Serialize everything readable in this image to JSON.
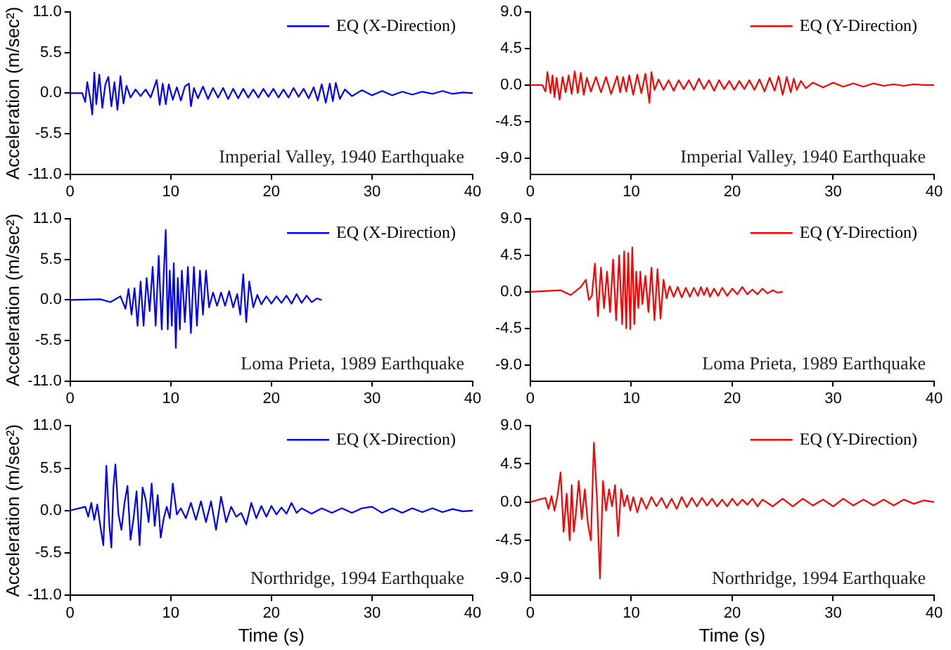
{
  "chart_data": [
    {
      "type": "line",
      "ylabel": "Acceleration (m/sec²)",
      "xlim": [
        0,
        40
      ],
      "xticks": [
        0,
        10,
        20,
        30,
        40
      ],
      "ylim": [
        -11,
        11
      ],
      "yticks": [
        {
          "value": -11,
          "label": "-11.0"
        },
        {
          "value": -5.5,
          "label": "-5.5"
        },
        {
          "value": 0,
          "label": "0.0"
        },
        {
          "value": 5.5,
          "label": "5.5"
        },
        {
          "value": 11,
          "label": "11.0"
        }
      ],
      "legend": "top right",
      "marker": "none",
      "annotations": [
        "Imperial Valley, 1940 Earthquake"
      ],
      "x": [
        0,
        1.2,
        1.5,
        1.7,
        2.0,
        2.2,
        2.4,
        2.6,
        2.9,
        3.2,
        3.5,
        3.8,
        4.1,
        4.4,
        4.7,
        5.0,
        5.3,
        5.6,
        6.0,
        6.5,
        7.0,
        7.5,
        8.0,
        8.6,
        8.9,
        9.2,
        9.5,
        9.8,
        10.2,
        10.6,
        11.0,
        11.4,
        11.8,
        12.0,
        12.3,
        12.7,
        13.2,
        13.7,
        14.2,
        14.7,
        15.2,
        15.7,
        16.2,
        16.7,
        17.2,
        17.7,
        18.2,
        18.7,
        19.2,
        19.7,
        20.2,
        20.7,
        21.2,
        21.7,
        22.2,
        22.7,
        23.2,
        23.7,
        24.2,
        24.6,
        25.0,
        25.4,
        25.8,
        26.1,
        26.4,
        26.8,
        27.3,
        28,
        29,
        30,
        31,
        32,
        33,
        34,
        35,
        36,
        37,
        38,
        39,
        40
      ],
      "series": [
        {
          "name": "EQ (X-Direction)",
          "color": "#0000ff",
          "values": [
            0,
            0,
            -1.2,
            1.5,
            -0.8,
            -2.9,
            2.8,
            -1.5,
            2.5,
            -2.0,
            1.2,
            2.2,
            -1.8,
            1.5,
            -2.3,
            2.3,
            -1.4,
            1.0,
            -0.6,
            0.5,
            -0.4,
            0.5,
            -0.6,
            1.8,
            -1.6,
            1.3,
            -1.5,
            1.2,
            -0.9,
            0.8,
            -1.0,
            0.9,
            1.3,
            -1.8,
            0.7,
            -0.7,
            0.9,
            -0.8,
            0.7,
            -0.6,
            0.7,
            -0.8,
            0.6,
            -0.7,
            0.6,
            -0.6,
            0.5,
            -0.6,
            0.6,
            -0.5,
            0.6,
            -0.6,
            0.5,
            -0.6,
            0.7,
            -0.5,
            0.6,
            -0.7,
            0.8,
            -1.0,
            1.2,
            -1.3,
            1.3,
            -1.1,
            1.4,
            -0.8,
            0.5,
            -0.4,
            0.4,
            -0.3,
            0.3,
            -0.3,
            0.2,
            -0.2,
            0.2,
            -0.1,
            0.3,
            -0.1,
            0.1,
            0
          ]
        }
      ]
    },
    {
      "type": "line",
      "xlim": [
        0,
        40
      ],
      "xticks": [
        0,
        10,
        20,
        30,
        40
      ],
      "ylim": [
        -11,
        9
      ],
      "yticks": [
        {
          "value": -9,
          "label": "-9.0"
        },
        {
          "value": -4.5,
          "label": "-4.5"
        },
        {
          "value": 0,
          "label": "0.0"
        },
        {
          "value": 4.5,
          "label": "4.5"
        },
        {
          "value": 9,
          "label": "9.0"
        }
      ],
      "legend": "top right",
      "marker": "none",
      "annotations": [
        "Imperial Valley, 1940 Earthquake"
      ],
      "x": [
        0,
        1.2,
        1.5,
        1.7,
        2.0,
        2.2,
        2.4,
        2.6,
        2.9,
        3.2,
        3.5,
        3.8,
        4.1,
        4.4,
        4.7,
        5.0,
        5.3,
        5.6,
        6.0,
        6.5,
        7.0,
        7.5,
        8.0,
        8.6,
        8.9,
        9.2,
        9.5,
        9.8,
        10.2,
        10.6,
        11.0,
        11.4,
        11.8,
        12.0,
        12.3,
        12.7,
        13.2,
        13.7,
        14.2,
        14.7,
        15.2,
        15.7,
        16.2,
        16.7,
        17.2,
        17.7,
        18.2,
        18.7,
        19.2,
        19.7,
        20.2,
        20.7,
        21.2,
        21.7,
        22.2,
        22.7,
        23.2,
        23.7,
        24.2,
        24.6,
        25.0,
        25.4,
        25.8,
        26.1,
        26.4,
        26.8,
        27.3,
        28,
        29,
        30,
        31,
        32,
        33,
        34,
        35,
        36,
        37,
        38,
        39,
        40
      ],
      "series": [
        {
          "name": "EQ (Y-Direction)",
          "color": "#ff0000",
          "values": [
            0,
            0,
            -0.8,
            1.6,
            -1.0,
            1.2,
            -1.5,
            0.9,
            -1.8,
            1.0,
            -0.9,
            1.2,
            -1.1,
            1.7,
            -1.0,
            1.5,
            -1.2,
            0.9,
            -0.8,
            1.0,
            -0.9,
            1.0,
            -1.1,
            1.1,
            -0.9,
            1.0,
            -0.8,
            1.2,
            -1.2,
            1.3,
            -1.0,
            1.4,
            -2.2,
            1.6,
            -0.6,
            0.7,
            -0.6,
            0.6,
            -0.7,
            0.6,
            -0.5,
            0.6,
            -0.6,
            0.8,
            -0.5,
            0.6,
            -0.7,
            0.6,
            -0.5,
            0.5,
            -0.6,
            0.5,
            -0.5,
            0.6,
            -0.6,
            0.7,
            -0.8,
            0.9,
            -0.7,
            1.1,
            -1.2,
            1.0,
            -0.9,
            0.8,
            -0.6,
            0.5,
            -0.4,
            0.3,
            -0.3,
            0.3,
            -0.2,
            0.2,
            -0.2,
            0.2,
            -0.1,
            0.1,
            -0.1,
            0.1,
            0,
            0
          ]
        }
      ]
    },
    {
      "type": "line",
      "ylabel": "Acceleration (m/sec²)",
      "xlim": [
        0,
        40
      ],
      "xticks": [
        0,
        10,
        20,
        30,
        40
      ],
      "ylim": [
        -11,
        11
      ],
      "yticks": [
        {
          "value": -11,
          "label": "-11.0"
        },
        {
          "value": -5.5,
          "label": "-5.5"
        },
        {
          "value": 0,
          "label": "0.0"
        },
        {
          "value": 5.5,
          "label": "5.5"
        },
        {
          "value": 11,
          "label": "11.0"
        }
      ],
      "legend": "top right",
      "marker": "none",
      "annotations": [
        "Loma Prieta, 1989 Earthquake"
      ],
      "x": [
        0,
        3,
        4,
        5,
        5.5,
        5.8,
        6.1,
        6.4,
        6.7,
        7.0,
        7.3,
        7.6,
        7.9,
        8.2,
        8.5,
        8.8,
        9.1,
        9.3,
        9.5,
        9.7,
        9.9,
        10.1,
        10.3,
        10.5,
        10.7,
        10.9,
        11.1,
        11.4,
        11.7,
        12.0,
        12.3,
        12.6,
        12.9,
        13.2,
        13.5,
        13.8,
        14.2,
        14.6,
        15.0,
        15.4,
        15.8,
        16.2,
        16.6,
        16.9,
        17.2,
        17.5,
        17.8,
        18.2,
        18.6,
        19.0,
        19.5,
        20,
        20.5,
        21,
        21.5,
        22,
        22.5,
        23,
        23.5,
        24,
        24.5,
        25
      ],
      "series": [
        {
          "name": "EQ (X-Direction)",
          "color": "#0000ff",
          "values": [
            0,
            0.1,
            -0.3,
            0.5,
            -1.2,
            1.5,
            -2.0,
            1.6,
            -3.5,
            2.5,
            -3.5,
            3.0,
            -1.5,
            4.5,
            -3.5,
            6.0,
            -4.0,
            3.5,
            9.5,
            -4.0,
            4.0,
            -3.5,
            5.0,
            -6.5,
            3.0,
            -4.0,
            4.0,
            -3.0,
            4.5,
            -4.5,
            4.5,
            -3.5,
            4.0,
            -2.0,
            4.0,
            -1.0,
            1.0,
            -0.8,
            1.0,
            -0.8,
            1.2,
            -1.0,
            0.8,
            -2.0,
            3.5,
            -3.0,
            2.5,
            -1.0,
            0.7,
            -0.6,
            0.5,
            -0.5,
            0.5,
            -0.4,
            0.6,
            -0.5,
            0.8,
            -0.4,
            0.6,
            -0.3,
            0.2,
            0
          ]
        }
      ]
    },
    {
      "type": "line",
      "xlim": [
        0,
        40
      ],
      "xticks": [
        0,
        10,
        20,
        30,
        40
      ],
      "ylim": [
        -11,
        9
      ],
      "yticks": [
        {
          "value": -9,
          "label": "-9.0"
        },
        {
          "value": -4.5,
          "label": "-4.5"
        },
        {
          "value": 0,
          "label": "0.0"
        },
        {
          "value": 4.5,
          "label": "4.5"
        },
        {
          "value": 9,
          "label": "9.0"
        }
      ],
      "legend": "top right",
      "marker": "none",
      "annotations": [
        "Loma Prieta, 1989 Earthquake"
      ],
      "x": [
        0,
        3,
        4,
        5,
        5.5,
        5.8,
        6.1,
        6.4,
        6.7,
        7.0,
        7.3,
        7.6,
        7.9,
        8.2,
        8.5,
        8.8,
        9.1,
        9.3,
        9.5,
        9.7,
        9.9,
        10.1,
        10.3,
        10.5,
        10.7,
        10.9,
        11.1,
        11.4,
        11.7,
        12.0,
        12.3,
        12.6,
        12.9,
        13.2,
        13.5,
        13.8,
        14.2,
        14.6,
        15.0,
        15.4,
        15.8,
        16.2,
        16.6,
        16.9,
        17.2,
        17.5,
        17.8,
        18.2,
        18.6,
        19.0,
        19.5,
        20,
        20.5,
        21,
        21.5,
        22,
        22.5,
        23,
        23.5,
        24,
        24.5,
        25
      ],
      "series": [
        {
          "name": "EQ (Y-Direction)",
          "color": "#ff0000",
          "values": [
            0,
            0.2,
            -0.4,
            0.6,
            1.5,
            -1.0,
            -0.5,
            3.5,
            -3.0,
            3.0,
            -2.0,
            2.5,
            -2.5,
            4.0,
            -3.5,
            4.5,
            -4.0,
            5.0,
            -4.5,
            4.8,
            -4.6,
            5.5,
            -4.0,
            2.5,
            -2.0,
            2.5,
            -1.5,
            2.0,
            -2.5,
            3.0,
            -3.5,
            2.8,
            -3.3,
            1.5,
            -0.8,
            0.7,
            -0.6,
            0.6,
            -0.7,
            0.5,
            -0.6,
            0.5,
            -0.5,
            0.6,
            -0.4,
            0.5,
            -0.6,
            0.4,
            -0.5,
            0.5,
            -0.5,
            0.4,
            -0.3,
            0.6,
            -0.3,
            0.3,
            -0.3,
            0.4,
            -0.2,
            0.2,
            -0.1,
            0
          ]
        }
      ]
    },
    {
      "type": "line",
      "xlabel": "Time (s)",
      "ylabel": "Acceleration (m/sec²)",
      "xlim": [
        0,
        40
      ],
      "xticks": [
        0,
        10,
        20,
        30,
        40
      ],
      "ylim": [
        -11,
        11
      ],
      "yticks": [
        {
          "value": -11,
          "label": "-11.0"
        },
        {
          "value": -5.5,
          "label": "-5.5"
        },
        {
          "value": 0,
          "label": "0.0"
        },
        {
          "value": 5.5,
          "label": "5.5"
        },
        {
          "value": 11,
          "label": "11.0"
        }
      ],
      "legend": "top right",
      "marker": "none",
      "annotations": [
        "Northridge, 1994 Earthquake"
      ],
      "x": [
        0,
        1.5,
        1.8,
        2.1,
        2.4,
        2.7,
        3.0,
        3.3,
        3.6,
        3.9,
        4.1,
        4.3,
        4.5,
        4.8,
        5.1,
        5.4,
        5.7,
        6.0,
        6.3,
        6.6,
        6.9,
        7.2,
        7.5,
        7.8,
        8.1,
        8.4,
        8.7,
        9.0,
        9.3,
        9.6,
        9.9,
        10.2,
        10.6,
        11.0,
        11.5,
        12.0,
        12.5,
        13.0,
        13.5,
        14.0,
        14.5,
        15.0,
        15.5,
        16.0,
        16.5,
        17,
        17.5,
        18,
        18.5,
        19,
        19.5,
        20,
        20.5,
        21,
        21.5,
        22,
        22.5,
        23,
        24,
        25,
        26,
        27,
        28,
        29,
        30,
        31,
        32,
        33,
        34,
        35,
        36,
        37,
        38,
        39,
        40
      ],
      "series": [
        {
          "name": "EQ (X-Direction)",
          "color": "#0000ff",
          "values": [
            0,
            0.5,
            -0.8,
            1.0,
            -1.2,
            0.8,
            -2.0,
            -4.5,
            5.8,
            -2.0,
            -4.8,
            3.0,
            6.0,
            -0.5,
            -2.5,
            1.0,
            3.2,
            -3.8,
            -1.0,
            2.5,
            -4.5,
            3.0,
            1.5,
            -1.5,
            3.5,
            -2.0,
            2.0,
            -3.5,
            -1.0,
            0.5,
            -1.0,
            3.5,
            -0.5,
            0.3,
            -1.0,
            1.0,
            -1.2,
            1.2,
            -1.5,
            1.2,
            -2.5,
            1.8,
            -1.5,
            0.5,
            -0.8,
            -0.3,
            -1.8,
            1.0,
            -1.0,
            0.6,
            -0.8,
            0.6,
            -0.5,
            0.4,
            -0.4,
            1.0,
            -0.3,
            0.3,
            -0.4,
            0.3,
            -0.3,
            0.3,
            -0.3,
            0.3,
            0.5,
            -0.3,
            0.3,
            -0.3,
            0.3,
            -0.2,
            0.3,
            -0.2,
            0.2,
            -0.1,
            0
          ]
        }
      ]
    },
    {
      "type": "line",
      "xlabel": "Time (s)",
      "xlim": [
        0,
        40
      ],
      "xticks": [
        0,
        10,
        20,
        30,
        40
      ],
      "ylim": [
        -11,
        9
      ],
      "yticks": [
        {
          "value": -9,
          "label": "-9.0"
        },
        {
          "value": -4.5,
          "label": "-4.5"
        },
        {
          "value": 0,
          "label": "0.0"
        },
        {
          "value": 4.5,
          "label": "4.5"
        },
        {
          "value": 9,
          "label": "9.0"
        }
      ],
      "legend": "top right",
      "marker": "none",
      "annotations": [
        "Northridge, 1994 Earthquake"
      ],
      "x": [
        0,
        1.5,
        1.8,
        2.1,
        2.4,
        2.7,
        3.0,
        3.3,
        3.6,
        3.9,
        4.1,
        4.3,
        4.5,
        4.8,
        5.1,
        5.4,
        5.7,
        6.0,
        6.3,
        6.6,
        6.9,
        7.2,
        7.5,
        7.8,
        8.1,
        8.4,
        8.7,
        9.0,
        9.3,
        9.6,
        9.9,
        10.2,
        10.6,
        11.0,
        11.5,
        12.0,
        12.5,
        13.0,
        13.5,
        14.0,
        14.5,
        15.0,
        15.5,
        16.0,
        16.5,
        17,
        17.5,
        18,
        18.5,
        19,
        19.5,
        20,
        20.5,
        21,
        21.5,
        22,
        22.5,
        23,
        24,
        25,
        26,
        27,
        28,
        29,
        30,
        31,
        32,
        33,
        34,
        35,
        36,
        37,
        38,
        39,
        40
      ],
      "series": [
        {
          "name": "EQ (Y-Direction)",
          "color": "#ff0000",
          "values": [
            0,
            0.5,
            -0.8,
            0.7,
            -1.0,
            0.8,
            3.5,
            -3.5,
            1.0,
            -4.5,
            2.0,
            -3.5,
            -1.5,
            2.5,
            -2.0,
            1.5,
            -2.5,
            -4.5,
            7.0,
            0.5,
            -9.0,
            2.5,
            -1.0,
            1.5,
            -0.5,
            2.0,
            -4.0,
            1.5,
            -0.5,
            0.8,
            -1.0,
            0.6,
            -1.2,
            0.5,
            -0.8,
            0.6,
            -0.5,
            0.5,
            -0.7,
            0.4,
            -0.8,
            0.6,
            -0.6,
            0.5,
            -0.5,
            0.5,
            -0.4,
            0.4,
            -0.5,
            0.3,
            -0.5,
            0.4,
            -0.4,
            0.3,
            -0.3,
            0.4,
            -0.5,
            0.3,
            -0.5,
            0.4,
            -0.5,
            0.4,
            -0.4,
            0.3,
            -0.5,
            0.4,
            -0.4,
            0.3,
            -0.4,
            0.3,
            -0.4,
            0.3,
            -0.2,
            0.2,
            0
          ]
        }
      ]
    }
  ]
}
